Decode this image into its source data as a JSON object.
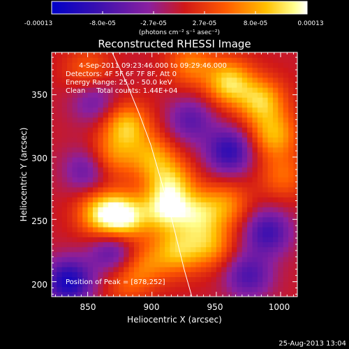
{
  "chart_data": {
    "type": "heatmap",
    "title": "Reconstructed RHESSI Image",
    "xlabel": "Heliocentric X (arcsec)",
    "ylabel": "Heliocentric Y (arcsec)",
    "xlim": [
      822,
      1013
    ],
    "ylim": [
      188,
      384
    ],
    "x_ticks": [
      850,
      900,
      950,
      1000
    ],
    "x_tick_labels": [
      "850",
      "900",
      "950",
      "1000"
    ],
    "y_ticks": [
      200,
      250,
      300,
      350
    ],
    "y_tick_labels": [
      "200",
      "250",
      "300",
      "350"
    ],
    "colorbar": {
      "colormap": "blue-purple-red-yellow-white",
      "range": [
        -0.00013,
        0.00013
      ],
      "tick_labels": [
        "-0.00013",
        "-8.0e-05",
        "-2.7e-05",
        "2.7e-05",
        "8.0e-05",
        "0.00013"
      ],
      "unit_label": "(photons cm⁻² s⁻¹ asec⁻²)"
    },
    "annotations": {
      "time_range": "4-Sep-2011 09:23:46.000 to 09:29:46.000",
      "detectors": "Detectors: 4F 5F 6F 7F 8F, Att 0",
      "energy_range": "Energy Range: 25.0 - 50.0 keV",
      "algorithm_counts": "Clean     Total counts: 1.44E+04",
      "peak_position": "Position of Peak = [878,252]"
    },
    "peak": {
      "x": 878,
      "y": 252
    },
    "solar_limb": [
      [
        869,
        384
      ],
      [
        880,
        360
      ],
      [
        890,
        335
      ],
      [
        899,
        310
      ],
      [
        906,
        285
      ],
      [
        913,
        260
      ],
      [
        919,
        235
      ],
      [
        925,
        210
      ],
      [
        931,
        188
      ]
    ],
    "sources": [
      {
        "x": 850,
        "y": 370,
        "value": 4.5e-05
      },
      {
        "x": 880,
        "y": 325,
        "value": 9e-05
      },
      {
        "x": 868,
        "y": 300,
        "value": 6e-05
      },
      {
        "x": 900,
        "y": 300,
        "value": 7e-05
      },
      {
        "x": 915,
        "y": 280,
        "value": 8e-05
      },
      {
        "x": 878,
        "y": 252,
        "value": 0.00012
      },
      {
        "x": 860,
        "y": 255,
        "value": 9e-05
      },
      {
        "x": 910,
        "y": 258,
        "value": 0.0001
      },
      {
        "x": 935,
        "y": 255,
        "value": 8e-05
      },
      {
        "x": 958,
        "y": 262,
        "value": 6e-05
      },
      {
        "x": 945,
        "y": 230,
        "value": 7e-05
      },
      {
        "x": 920,
        "y": 225,
        "value": 8e-05
      },
      {
        "x": 895,
        "y": 215,
        "value": 5e-05
      },
      {
        "x": 960,
        "y": 360,
        "value": 0.0001
      },
      {
        "x": 985,
        "y": 345,
        "value": 9e-05
      },
      {
        "x": 995,
        "y": 318,
        "value": 8e-05
      },
      {
        "x": 1002,
        "y": 285,
        "value": 5e-05
      },
      {
        "x": 930,
        "y": 375,
        "value": 6e-05
      },
      {
        "x": 880,
        "y": 200,
        "value": 4e-05
      },
      {
        "x": 850,
        "y": 290,
        "value": -6e-05
      },
      {
        "x": 960,
        "y": 305,
        "value": -9e-05
      },
      {
        "x": 870,
        "y": 225,
        "value": -7e-05
      },
      {
        "x": 835,
        "y": 200,
        "value": -0.00011
      },
      {
        "x": 990,
        "y": 240,
        "value": -8e-05
      },
      {
        "x": 930,
        "y": 330,
        "value": -6e-05
      },
      {
        "x": 855,
        "y": 345,
        "value": -5e-05
      },
      {
        "x": 975,
        "y": 205,
        "value": -7e-05
      }
    ]
  },
  "footer": {
    "timestamp": "25-Aug-2013 13:04"
  }
}
